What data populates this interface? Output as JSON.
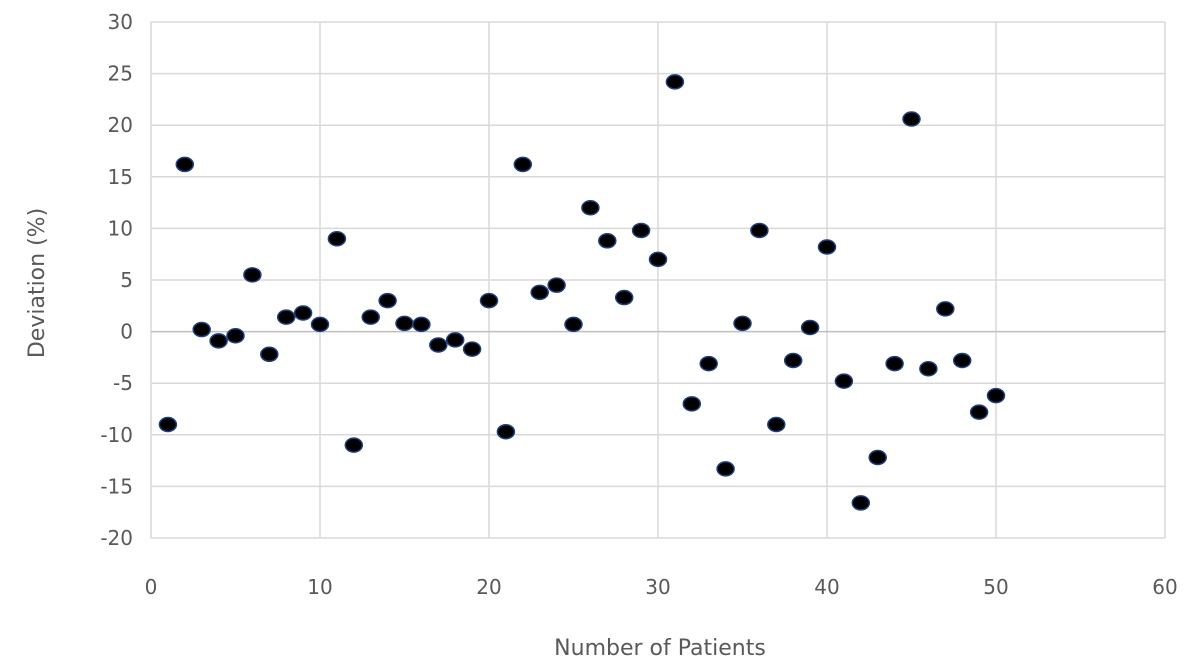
{
  "chart_data": {
    "type": "scatter",
    "title": "",
    "xlabel": "Number of Patients",
    "ylabel": "Deviation (%)",
    "xlim": [
      0,
      60
    ],
    "ylim": [
      -20,
      30
    ],
    "x_ticks": [
      "0",
      "10",
      "20",
      "30",
      "40",
      "50",
      "60"
    ],
    "y_ticks": [
      "30",
      "25",
      "20",
      "15",
      "10",
      "5",
      "0",
      "-5",
      "-10",
      "-15",
      "-20"
    ],
    "grid": true,
    "legend": "none",
    "point_color": "#000000",
    "series": [
      {
        "x": [
          1,
          2,
          3,
          4,
          5,
          6,
          7,
          8,
          9,
          10,
          11,
          12,
          13,
          14,
          15,
          16,
          17,
          18,
          19,
          20,
          21,
          22,
          23,
          24,
          25,
          26,
          27,
          28,
          29,
          30,
          31,
          32,
          33,
          34,
          35,
          36,
          37,
          38,
          39,
          40,
          41,
          42,
          43,
          44,
          45,
          46,
          47,
          48,
          49,
          50
        ],
        "y": [
          -9,
          16.2,
          0.2,
          -0.9,
          -0.4,
          5.5,
          -2.2,
          1.4,
          1.8,
          0.7,
          9,
          -11,
          1.4,
          3,
          0.8,
          0.7,
          -1.3,
          -0.8,
          -1.7,
          3,
          -9.7,
          16.2,
          3.8,
          4.5,
          0.7,
          12,
          8.8,
          3.3,
          9.8,
          7,
          24.2,
          -7,
          -3.1,
          -13.3,
          0.8,
          9.8,
          -9,
          -2.8,
          0.4,
          8.2,
          -4.8,
          -16.6,
          -12.2,
          -3.1,
          20.6,
          -3.6,
          2.2,
          -2.8,
          -7.8,
          -6.2
        ]
      }
    ]
  }
}
